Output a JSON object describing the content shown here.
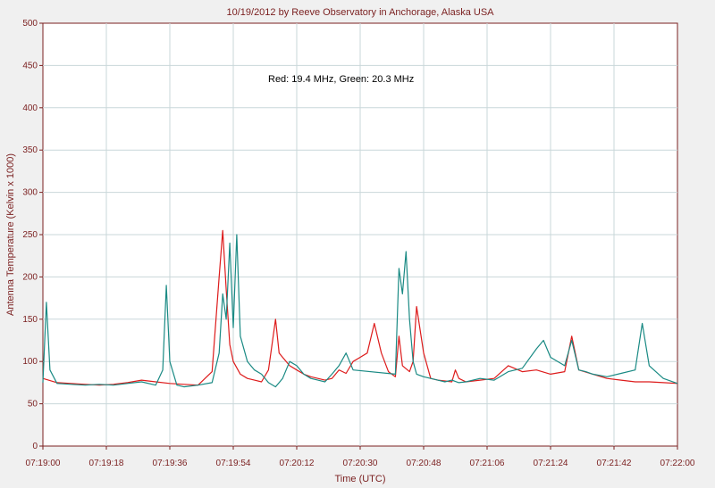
{
  "chart_data": {
    "type": "line",
    "title": "10/19/2012  by  Reeve Observatory  in  Anchorage, Alaska  USA",
    "annotation": "Red: 19.4 MHz, Green: 20.3 MHz",
    "xlabel": "Time (UTC)",
    "ylabel": "Antenna Temperature (Kelvin x 1000)",
    "ylim": [
      0,
      500
    ],
    "yticks": [
      0,
      50,
      100,
      150,
      200,
      250,
      300,
      350,
      400,
      450,
      500
    ],
    "xticks": [
      "07:19:00",
      "07:19:18",
      "07:19:36",
      "07:19:54",
      "07:20:12",
      "07:20:30",
      "07:20:48",
      "07:21:06",
      "07:21:24",
      "07:21:42",
      "07:22:00"
    ],
    "xlim_seconds": [
      0,
      180
    ],
    "grid": true,
    "colors": {
      "red": "#dd1b1b",
      "green": "#1a8a84",
      "grid": "#c9d7da",
      "axis": "#7a1f1f",
      "plot_bg": "#ffffff",
      "page_bg": "#f0f0f0"
    },
    "series": [
      {
        "name": "19.4 MHz",
        "color": "#dd1b1b",
        "x": [
          0,
          4,
          8,
          12,
          16,
          20,
          24,
          28,
          32,
          36,
          40,
          44,
          48,
          50,
          51,
          52,
          53,
          54,
          56,
          58,
          60,
          62,
          64,
          66,
          67,
          68,
          70,
          72,
          74,
          76,
          78,
          80,
          82,
          84,
          86,
          88,
          90,
          92,
          94,
          96,
          98,
          100,
          101,
          102,
          104,
          105,
          106,
          108,
          110,
          112,
          114,
          116,
          117,
          118,
          120,
          124,
          128,
          132,
          136,
          140,
          144,
          148,
          150,
          152,
          156,
          160,
          164,
          168,
          172,
          176,
          180
        ],
        "y": [
          80,
          75,
          74,
          73,
          72,
          73,
          75,
          78,
          76,
          74,
          73,
          72,
          88,
          200,
          255,
          185,
          120,
          100,
          85,
          80,
          78,
          76,
          90,
          150,
          110,
          105,
          95,
          90,
          85,
          82,
          80,
          78,
          80,
          90,
          86,
          100,
          105,
          110,
          145,
          110,
          88,
          82,
          130,
          95,
          88,
          100,
          165,
          110,
          80,
          78,
          77,
          76,
          90,
          80,
          76,
          78,
          80,
          95,
          88,
          90,
          85,
          88,
          130,
          90,
          85,
          80,
          78,
          76,
          76,
          75,
          74
        ]
      },
      {
        "name": "20.3 MHz",
        "color": "#1a8a84",
        "x": [
          0,
          1,
          2,
          4,
          8,
          12,
          16,
          20,
          24,
          28,
          32,
          34,
          35,
          36,
          38,
          40,
          44,
          48,
          50,
          51,
          52,
          53,
          54,
          55,
          56,
          58,
          60,
          62,
          64,
          66,
          68,
          70,
          72,
          74,
          76,
          78,
          80,
          82,
          84,
          86,
          88,
          100,
          101,
          102,
          103,
          104,
          105,
          106,
          108,
          110,
          112,
          114,
          116,
          118,
          120,
          124,
          128,
          132,
          136,
          140,
          142,
          144,
          148,
          150,
          152,
          154,
          156,
          160,
          164,
          168,
          170,
          172,
          176,
          180
        ],
        "y": [
          75,
          170,
          90,
          74,
          73,
          72,
          73,
          72,
          74,
          76,
          72,
          90,
          190,
          100,
          72,
          70,
          72,
          75,
          110,
          180,
          150,
          240,
          140,
          250,
          130,
          100,
          90,
          85,
          75,
          70,
          80,
          100,
          95,
          85,
          80,
          78,
          76,
          85,
          95,
          110,
          90,
          85,
          210,
          180,
          230,
          150,
          100,
          85,
          82,
          80,
          78,
          76,
          78,
          75,
          76,
          80,
          78,
          88,
          92,
          115,
          125,
          105,
          95,
          125,
          90,
          88,
          85,
          82,
          86,
          90,
          145,
          95,
          80,
          74
        ]
      }
    ]
  }
}
